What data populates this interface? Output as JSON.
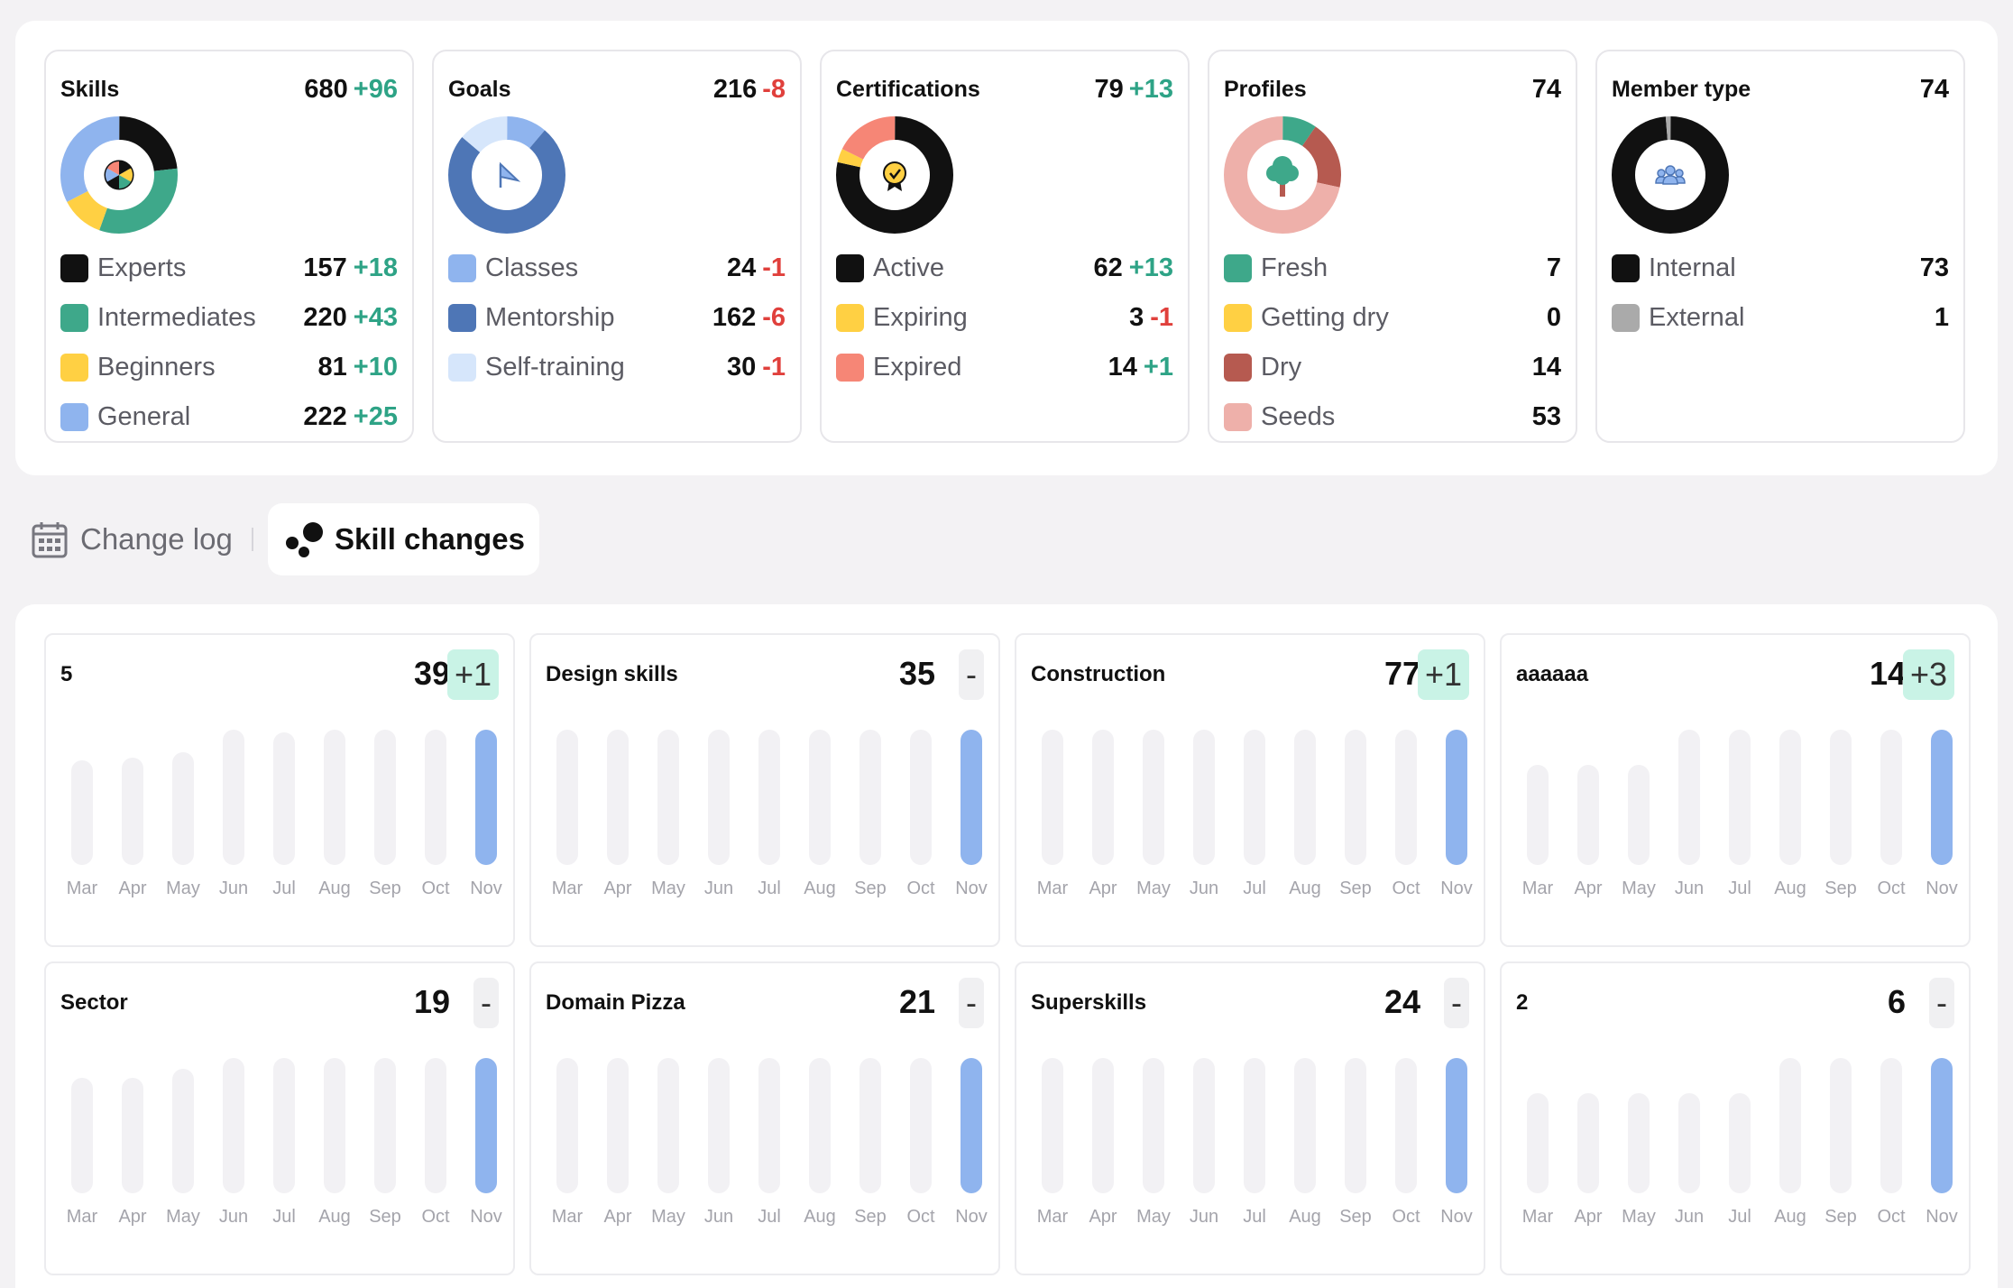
{
  "stats": [
    {
      "title": "Skills",
      "total": "680",
      "delta": "+96",
      "delta_sign": "pos",
      "icon": "wheel-icon",
      "rows": [
        {
          "label": "Experts",
          "value": "157",
          "delta": "+18",
          "sign": "pos",
          "color": "#111111",
          "share": 157
        },
        {
          "label": "Intermediates",
          "value": "220",
          "delta": "+43",
          "sign": "pos",
          "color": "#3ea88a",
          "share": 220
        },
        {
          "label": "Beginners",
          "value": "81",
          "delta": "+10",
          "sign": "pos",
          "color": "#ffd043",
          "share": 81
        },
        {
          "label": "General",
          "value": "222",
          "delta": "+25",
          "sign": "pos",
          "color": "#8fb4ee",
          "share": 222
        }
      ]
    },
    {
      "title": "Goals",
      "total": "216",
      "delta": "-8",
      "delta_sign": "neg",
      "icon": "flag-icon",
      "rows": [
        {
          "label": "Classes",
          "value": "24",
          "delta": "-1",
          "sign": "neg",
          "color": "#8fb4ee",
          "share": 24
        },
        {
          "label": "Mentorship",
          "value": "162",
          "delta": "-6",
          "sign": "neg",
          "color": "#4e76b6",
          "share": 162
        },
        {
          "label": "Self-training",
          "value": "30",
          "delta": "-1",
          "sign": "neg",
          "color": "#d6e6fb",
          "share": 30
        }
      ]
    },
    {
      "title": "Certifications",
      "total": "79",
      "delta": "+13",
      "delta_sign": "pos",
      "icon": "badge-icon",
      "rows": [
        {
          "label": "Active",
          "value": "62",
          "delta": "+13",
          "sign": "pos",
          "color": "#111111",
          "share": 62
        },
        {
          "label": "Expiring",
          "value": "3",
          "delta": "-1",
          "sign": "neg",
          "color": "#ffd043",
          "share": 3
        },
        {
          "label": "Expired",
          "value": "14",
          "delta": "+1",
          "sign": "pos",
          "color": "#f68676",
          "share": 14
        }
      ]
    },
    {
      "title": "Profiles",
      "total": "74",
      "delta": "",
      "delta_sign": "pos",
      "icon": "tree-icon",
      "rows": [
        {
          "label": "Fresh",
          "value": "7",
          "delta": "",
          "sign": "pos",
          "color": "#3ea88a",
          "share": 7
        },
        {
          "label": "Getting dry",
          "value": "0",
          "delta": "",
          "sign": "pos",
          "color": "#ffd043",
          "share": 0
        },
        {
          "label": "Dry",
          "value": "14",
          "delta": "",
          "sign": "pos",
          "color": "#b65a50",
          "share": 14
        },
        {
          "label": "Seeds",
          "value": "53",
          "delta": "",
          "sign": "pos",
          "color": "#eeb0aa",
          "share": 53
        }
      ]
    },
    {
      "title": "Member type",
      "total": "74",
      "delta": "",
      "delta_sign": "pos",
      "icon": "people-icon",
      "rows": [
        {
          "label": "Internal",
          "value": "73",
          "delta": "",
          "sign": "pos",
          "color": "#111111",
          "share": 73
        },
        {
          "label": "External",
          "value": "1",
          "delta": "",
          "sign": "pos",
          "color": "#aaaaaa",
          "share": 1
        }
      ]
    }
  ],
  "tabs": {
    "changelog": "Change log",
    "skill_changes": "Skill changes"
  },
  "months": [
    "Mar",
    "Apr",
    "May",
    "Jun",
    "Jul",
    "Aug",
    "Sep",
    "Oct",
    "Nov"
  ],
  "skill_cards": [
    {
      "title": "5",
      "total": "39",
      "delta": "+1",
      "delta_kind": "up",
      "bars": [
        0.77,
        0.79,
        0.83,
        1,
        0.98,
        1,
        1,
        1,
        1
      ]
    },
    {
      "title": "Design skills",
      "total": "35",
      "delta": "-",
      "delta_kind": "none",
      "bars": [
        1,
        1,
        1,
        1,
        1,
        1,
        1,
        1,
        1
      ]
    },
    {
      "title": "Construction",
      "total": "77",
      "delta": "+1",
      "delta_kind": "up",
      "bars": [
        1,
        1,
        1,
        1,
        1,
        1,
        1,
        1,
        1
      ]
    },
    {
      "title": "aaaaaa",
      "total": "14",
      "delta": "+3",
      "delta_kind": "up",
      "bars": [
        0.74,
        0.74,
        0.74,
        1,
        1,
        1,
        1,
        1,
        1
      ]
    },
    {
      "title": "Sector",
      "total": "19",
      "delta": "-",
      "delta_kind": "none",
      "bars": [
        0.85,
        0.85,
        0.92,
        1,
        1,
        1,
        1,
        1,
        1
      ]
    },
    {
      "title": "Domain Pizza",
      "total": "21",
      "delta": "-",
      "delta_kind": "none",
      "bars": [
        1,
        1,
        1,
        1,
        1,
        1,
        1,
        1,
        1
      ]
    },
    {
      "title": "Superskills",
      "total": "24",
      "delta": "-",
      "delta_kind": "none",
      "bars": [
        1,
        1,
        1,
        1,
        1,
        1,
        1,
        1,
        1
      ]
    },
    {
      "title": "2",
      "total": "6",
      "delta": "-",
      "delta_kind": "none",
      "bars": [
        0.74,
        0.74,
        0.74,
        0.74,
        0.74,
        1,
        1,
        1,
        1
      ]
    }
  ]
}
